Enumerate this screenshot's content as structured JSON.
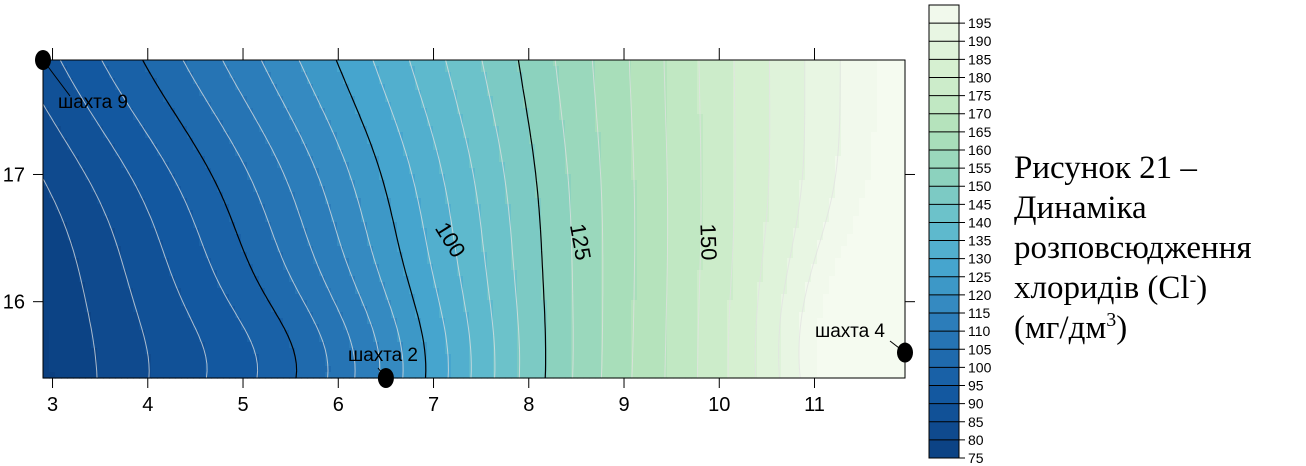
{
  "chart_data": {
    "type": "contour",
    "x_ticks": [
      3,
      4,
      5,
      6,
      7,
      8,
      9,
      10,
      11
    ],
    "y_ticks": [
      16,
      17
    ],
    "xlim": [
      2.9,
      11.95
    ],
    "ylim": [
      15.4,
      17.9
    ],
    "wells": [
      {
        "name": "шахта 9",
        "x": 2.9,
        "y": 17.9
      },
      {
        "name": "шахта 2",
        "x": 6.5,
        "y": 15.4
      },
      {
        "name": "шахта 4",
        "x": 11.95,
        "y": 15.6
      }
    ],
    "labeled_contours": [
      {
        "level": 100,
        "label": "100"
      },
      {
        "level": 125,
        "label": "125"
      },
      {
        "level": 150,
        "label": "150"
      }
    ],
    "colorbar": {
      "min": 75,
      "max": 200,
      "step": 5,
      "tick_labels": [
        "195",
        "190",
        "185",
        "180",
        "175",
        "170",
        "165",
        "160",
        "155",
        "150",
        "145",
        "140",
        "135",
        "130",
        "125",
        "120",
        "115",
        "110",
        "105",
        "100",
        "95",
        "90",
        "85",
        "80",
        "75"
      ],
      "low_color": "#0b3f80",
      "high_color": "#f5fbf0"
    }
  },
  "caption": {
    "line1": "Рисунок 21 –",
    "line2": "Динаміка",
    "line3": "розповсюдження",
    "line4_a": "хлоридів (Cl",
    "line4_sup": "-",
    "line4_b": ")",
    "line5_a": "(мг/дм",
    "line5_sup": "3",
    "line5_b": ")"
  }
}
